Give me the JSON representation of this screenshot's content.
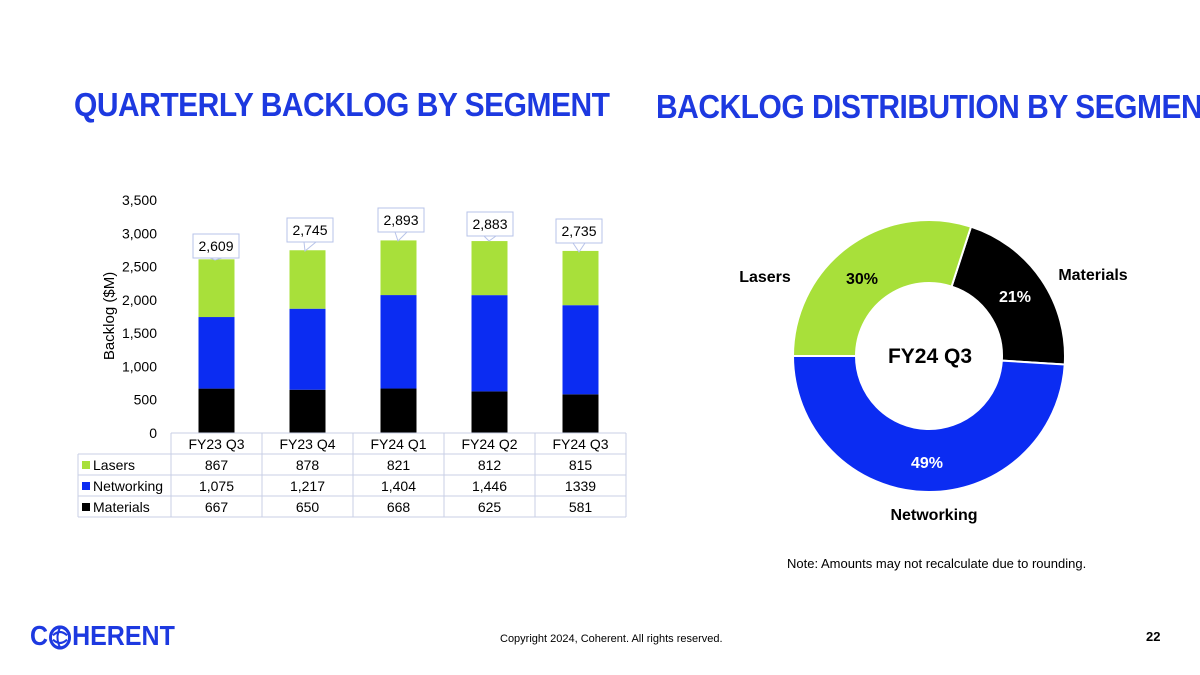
{
  "colors": {
    "brand": "#1d39e0",
    "lasers": "#a8e03a",
    "networking": "#0b2cf2",
    "materials": "#000000",
    "label_border": "#b7c3e8",
    "table_border": "#c9cfe6"
  },
  "titles": {
    "left": "QUARTERLY BACKLOG BY SEGMENT",
    "right": "BACKLOG DISTRIBUTION BY SEGMENT"
  },
  "note": "Note: Amounts may not recalculate due to rounding.",
  "footer": {
    "logo_text_start": "C",
    "logo_text_end": "HERENT",
    "copyright": "Copyright 2024, Coherent. All rights reserved.",
    "page_number": "22"
  },
  "chart_data": [
    {
      "type": "bar",
      "stacked": true,
      "title": "QUARTERLY BACKLOG BY SEGMENT",
      "ylabel": "Backlog ($M)",
      "ylim": [
        0,
        3500
      ],
      "yticks": [
        "0",
        "500",
        "1,000",
        "1,500",
        "2,000",
        "2,500",
        "3,000",
        "3,500"
      ],
      "categories": [
        "FY23 Q3",
        "FY23 Q4",
        "FY24 Q1",
        "FY24 Q2",
        "FY24 Q3"
      ],
      "totals": [
        "2,609",
        "2,745",
        "2,893",
        "2,883",
        "2,735"
      ],
      "series": [
        {
          "name": "Lasers",
          "values": [
            867,
            878,
            821,
            812,
            815
          ],
          "labels": [
            "867",
            "878",
            "821",
            "812",
            "815"
          ]
        },
        {
          "name": "Networking",
          "values": [
            1075,
            1217,
            1404,
            1446,
            1339
          ],
          "labels": [
            "1,075",
            "1,217",
            "1,404",
            "1,446",
            "1339"
          ]
        },
        {
          "name": "Materials",
          "values": [
            667,
            650,
            668,
            625,
            581
          ],
          "labels": [
            "667",
            "650",
            "668",
            "625",
            "581"
          ]
        }
      ],
      "legend": "data-table"
    },
    {
      "type": "pie",
      "donut": true,
      "title": "BACKLOG DISTRIBUTION BY SEGMENT",
      "center_label": "FY24 Q3",
      "slices": [
        {
          "name": "Materials",
          "value": 21,
          "label": "21%"
        },
        {
          "name": "Networking",
          "value": 49,
          "label": "49%"
        },
        {
          "name": "Lasers",
          "value": 30,
          "label": "30%"
        }
      ]
    }
  ]
}
